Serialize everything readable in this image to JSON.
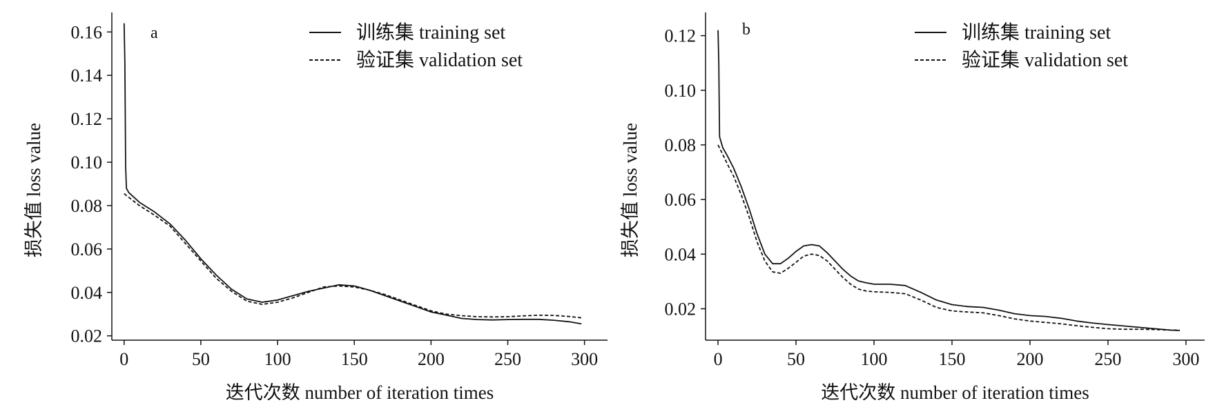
{
  "chart_data": [
    {
      "type": "line",
      "panel_label": "a",
      "xlabel": "迭代次数 number of iteration times",
      "ylabel": "损失值 loss value",
      "xlim": [
        -8,
        315
      ],
      "ylim": [
        0.018,
        0.169
      ],
      "xticks": [
        0,
        50,
        100,
        150,
        200,
        250,
        300
      ],
      "xtick_labels": [
        "0",
        "50",
        "100",
        "150",
        "200",
        "250",
        "300"
      ],
      "yticks": [
        0.02,
        0.04,
        0.06,
        0.08,
        0.1,
        0.12,
        0.14,
        0.16
      ],
      "ytick_labels": [
        "0.02",
        "0.04",
        "0.06",
        "0.08",
        "0.10",
        "0.12",
        "0.14",
        "0.16"
      ],
      "grid": false,
      "legend": "top-right",
      "series": [
        {
          "name": "训练集 training set",
          "style": "solid",
          "points": [
            [
              0,
              0.164
            ],
            [
              0.5,
              0.145
            ],
            [
              1,
              0.098
            ],
            [
              1.5,
              0.088
            ],
            [
              3,
              0.086
            ],
            [
              10,
              0.0815
            ],
            [
              20,
              0.077
            ],
            [
              30,
              0.0715
            ],
            [
              40,
              0.064
            ],
            [
              50,
              0.0555
            ],
            [
              60,
              0.048
            ],
            [
              70,
              0.0415
            ],
            [
              80,
              0.037
            ],
            [
              90,
              0.0355
            ],
            [
              100,
              0.0365
            ],
            [
              110,
              0.0385
            ],
            [
              120,
              0.0405
            ],
            [
              130,
              0.042
            ],
            [
              140,
              0.0435
            ],
            [
              150,
              0.043
            ],
            [
              160,
              0.041
            ],
            [
              170,
              0.0385
            ],
            [
              180,
              0.036
            ],
            [
              190,
              0.0335
            ],
            [
              200,
              0.031
            ],
            [
              210,
              0.0295
            ],
            [
              220,
              0.028
            ],
            [
              230,
              0.0275
            ],
            [
              240,
              0.0273
            ],
            [
              250,
              0.0275
            ],
            [
              260,
              0.0276
            ],
            [
              270,
              0.0276
            ],
            [
              280,
              0.0272
            ],
            [
              290,
              0.0265
            ],
            [
              298,
              0.0255
            ]
          ]
        },
        {
          "name": "验证集 validation set",
          "style": "dashed",
          "points": [
            [
              0,
              0.0855
            ],
            [
              10,
              0.08
            ],
            [
              20,
              0.0755
            ],
            [
              30,
              0.0705
            ],
            [
              40,
              0.0625
            ],
            [
              50,
              0.0545
            ],
            [
              60,
              0.0465
            ],
            [
              70,
              0.0405
            ],
            [
              80,
              0.036
            ],
            [
              90,
              0.0345
            ],
            [
              100,
              0.0355
            ],
            [
              110,
              0.0375
            ],
            [
              120,
              0.04
            ],
            [
              130,
              0.0425
            ],
            [
              140,
              0.043
            ],
            [
              150,
              0.0425
            ],
            [
              160,
              0.041
            ],
            [
              170,
              0.039
            ],
            [
              180,
              0.0365
            ],
            [
              190,
              0.034
            ],
            [
              200,
              0.0315
            ],
            [
              210,
              0.03
            ],
            [
              220,
              0.0293
            ],
            [
              230,
              0.0288
            ],
            [
              240,
              0.0287
            ],
            [
              250,
              0.0288
            ],
            [
              260,
              0.0292
            ],
            [
              270,
              0.0295
            ],
            [
              280,
              0.0294
            ],
            [
              290,
              0.0289
            ],
            [
              298,
              0.0283
            ]
          ]
        }
      ]
    },
    {
      "type": "line",
      "panel_label": "b",
      "xlabel": "迭代次数 number of iteration times",
      "ylabel": "损失值 loss value",
      "xlim": [
        -8,
        312
      ],
      "ylim": [
        0.0085,
        0.1285
      ],
      "xticks": [
        0,
        50,
        100,
        150,
        200,
        250,
        300
      ],
      "xtick_labels": [
        "0",
        "50",
        "100",
        "150",
        "200",
        "250",
        "300"
      ],
      "yticks": [
        0.02,
        0.04,
        0.06,
        0.08,
        0.1,
        0.12
      ],
      "ytick_labels": [
        "0.02",
        "0.04",
        "0.06",
        "0.08",
        "0.10",
        "0.12"
      ],
      "grid": false,
      "legend": "top-right",
      "series": [
        {
          "name": "训练集 training set",
          "style": "solid",
          "points": [
            [
              0,
              0.122
            ],
            [
              0.5,
              0.11
            ],
            [
              1,
              0.083
            ],
            [
              3,
              0.079
            ],
            [
              6,
              0.076
            ],
            [
              10,
              0.0715
            ],
            [
              15,
              0.0645
            ],
            [
              20,
              0.0565
            ],
            [
              25,
              0.0475
            ],
            [
              30,
              0.04
            ],
            [
              35,
              0.0365
            ],
            [
              40,
              0.0365
            ],
            [
              45,
              0.0385
            ],
            [
              50,
              0.041
            ],
            [
              55,
              0.043
            ],
            [
              60,
              0.0435
            ],
            [
              65,
              0.043
            ],
            [
              70,
              0.0405
            ],
            [
              75,
              0.0375
            ],
            [
              80,
              0.0345
            ],
            [
              85,
              0.032
            ],
            [
              90,
              0.0302
            ],
            [
              95,
              0.0295
            ],
            [
              100,
              0.029
            ],
            [
              110,
              0.029
            ],
            [
              120,
              0.0285
            ],
            [
              130,
              0.026
            ],
            [
              140,
              0.0232
            ],
            [
              150,
              0.0215
            ],
            [
              160,
              0.0208
            ],
            [
              170,
              0.0205
            ],
            [
              180,
              0.0195
            ],
            [
              190,
              0.0182
            ],
            [
              200,
              0.0175
            ],
            [
              210,
              0.0172
            ],
            [
              220,
              0.0165
            ],
            [
              230,
              0.0155
            ],
            [
              240,
              0.0148
            ],
            [
              250,
              0.0142
            ],
            [
              260,
              0.0137
            ],
            [
              270,
              0.0132
            ],
            [
              280,
              0.0127
            ],
            [
              290,
              0.0122
            ],
            [
              296,
              0.012
            ]
          ]
        },
        {
          "name": "验证集 validation set",
          "style": "dashed",
          "points": [
            [
              0,
              0.08
            ],
            [
              3,
              0.0765
            ],
            [
              6,
              0.073
            ],
            [
              10,
              0.0685
            ],
            [
              15,
              0.0615
            ],
            [
              20,
              0.0535
            ],
            [
              25,
              0.0445
            ],
            [
              30,
              0.0375
            ],
            [
              35,
              0.0335
            ],
            [
              40,
              0.033
            ],
            [
              45,
              0.0348
            ],
            [
              50,
              0.037
            ],
            [
              55,
              0.0393
            ],
            [
              60,
              0.04
            ],
            [
              65,
              0.0395
            ],
            [
              70,
              0.0375
            ],
            [
              75,
              0.0345
            ],
            [
              80,
              0.0315
            ],
            [
              85,
              0.029
            ],
            [
              90,
              0.0272
            ],
            [
              95,
              0.0265
            ],
            [
              100,
              0.0262
            ],
            [
              110,
              0.026
            ],
            [
              120,
              0.0255
            ],
            [
              130,
              0.0232
            ],
            [
              140,
              0.0205
            ],
            [
              150,
              0.0192
            ],
            [
              160,
              0.0188
            ],
            [
              170,
              0.0185
            ],
            [
              180,
              0.0175
            ],
            [
              190,
              0.0163
            ],
            [
              200,
              0.0155
            ],
            [
              210,
              0.015
            ],
            [
              220,
              0.0145
            ],
            [
              230,
              0.0138
            ],
            [
              240,
              0.0132
            ],
            [
              250,
              0.0127
            ],
            [
              260,
              0.0125
            ],
            [
              270,
              0.0125
            ],
            [
              280,
              0.0124
            ],
            [
              290,
              0.0122
            ],
            [
              296,
              0.0122
            ]
          ]
        }
      ]
    }
  ]
}
